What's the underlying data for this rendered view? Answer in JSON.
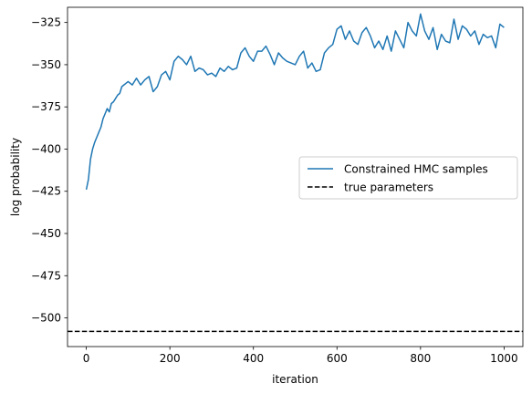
{
  "chart_data": {
    "type": "line",
    "xlabel": "iteration",
    "ylabel": "log probability",
    "xlim": [
      -45,
      1045
    ],
    "ylim": [
      -517,
      -316
    ],
    "x_ticks": [
      0,
      200,
      400,
      600,
      800,
      1000
    ],
    "y_ticks": [
      -325,
      -350,
      -375,
      -400,
      -425,
      -450,
      -475,
      -500
    ],
    "grid": false,
    "legend_position": "center-right",
    "series": [
      {
        "name": "Constrained HMC samples",
        "color": "#1f77b4",
        "style": "solid",
        "x": [
          0,
          5,
          10,
          15,
          20,
          25,
          30,
          35,
          40,
          45,
          50,
          55,
          60,
          65,
          70,
          75,
          80,
          85,
          90,
          95,
          100,
          110,
          120,
          130,
          140,
          150,
          160,
          170,
          180,
          190,
          200,
          210,
          220,
          230,
          240,
          250,
          260,
          270,
          280,
          290,
          300,
          310,
          320,
          330,
          340,
          350,
          360,
          370,
          380,
          390,
          400,
          410,
          420,
          430,
          440,
          450,
          460,
          470,
          480,
          490,
          500,
          510,
          520,
          530,
          540,
          550,
          560,
          570,
          580,
          590,
          600,
          610,
          620,
          630,
          640,
          650,
          660,
          670,
          680,
          690,
          700,
          710,
          720,
          730,
          740,
          750,
          760,
          770,
          780,
          790,
          800,
          810,
          820,
          830,
          840,
          850,
          860,
          870,
          880,
          890,
          900,
          910,
          920,
          930,
          940,
          950,
          960,
          970,
          980,
          990,
          1000
        ],
        "y": [
          -424,
          -418,
          -406,
          -400,
          -396,
          -393,
          -390,
          -387,
          -382,
          -379,
          -376,
          -378,
          -373,
          -372,
          -370,
          -368,
          -367,
          -363,
          -362,
          -361,
          -360,
          -362,
          -358,
          -362,
          -359,
          -357,
          -366,
          -363,
          -356,
          -354,
          -359,
          -348,
          -345,
          -347,
          -350,
          -345,
          -354,
          -352,
          -353,
          -356,
          -355,
          -357,
          -352,
          -354,
          -351,
          -353,
          -352,
          -343,
          -340,
          -345,
          -348,
          -342,
          -342,
          -339,
          -344,
          -350,
          -343,
          -346,
          -348,
          -349,
          -350,
          -345,
          -342,
          -352,
          -349,
          -354,
          -353,
          -343,
          -340,
          -338,
          -329,
          -327,
          -335,
          -330,
          -336,
          -338,
          -331,
          -328,
          -333,
          -340,
          -336,
          -341,
          -333,
          -342,
          -330,
          -335,
          -340,
          -325,
          -330,
          -333,
          -320,
          -330,
          -335,
          -328,
          -341,
          -332,
          -336,
          -337,
          -323,
          -335,
          -327,
          -329,
          -333,
          -330,
          -338,
          -332,
          -334,
          -333,
          -340,
          -326,
          -328
        ]
      },
      {
        "name": "true parameters",
        "color": "#000000",
        "style": "dashed",
        "y_constant": -508
      }
    ]
  }
}
